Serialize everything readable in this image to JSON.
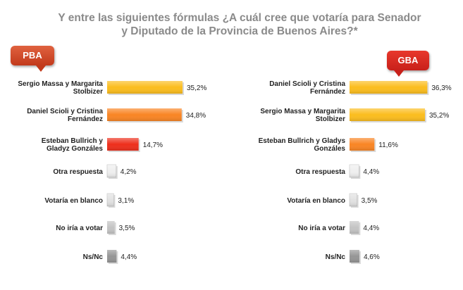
{
  "title_line1": "Y entre las siguientes fórmulas ¿A cuál cree que votaría para Senador",
  "title_line2": "y Diputado de la Provincia de Buenos Aires?*",
  "chart_data": [
    {
      "type": "bar",
      "title": "PBA",
      "categories": [
        [
          "Sergio Massa y Margarita",
          "Stolbizer"
        ],
        [
          "Daniel Scioli y Cristina",
          "Fernández"
        ],
        [
          "Esteban Bullrich y",
          "Gladyz Gonzáles"
        ],
        [
          "Otra respuesta"
        ],
        [
          "Votaría en blanco"
        ],
        [
          "No iría a votar"
        ],
        [
          "Ns/Nc"
        ]
      ],
      "values": [
        35.2,
        34.8,
        14.7,
        4.2,
        3.1,
        3.5,
        4.4
      ],
      "value_labels": [
        "35,2%",
        "34,8%",
        "14,7%",
        "4,2%",
        "3,1%",
        "3,5%",
        "4,4%"
      ],
      "colors": [
        "#fbbd1e",
        "#f98524",
        "#ee2f1c",
        "#efefef",
        "#e2e2e2",
        "#c4c4c4",
        "#969696"
      ]
    },
    {
      "type": "bar",
      "title": "GBA",
      "categories": [
        [
          "Daniel Scioli y Cristina",
          "Fernández"
        ],
        [
          "Sergio Massa y Margarita",
          "Stolbizer"
        ],
        [
          "Esteban Bullrich y Gladys",
          "Gonzáles"
        ],
        [
          "Otra respuesta"
        ],
        [
          "Votaría en blanco"
        ],
        [
          "No iría a votar"
        ],
        [
          "Ns/Nc"
        ]
      ],
      "values": [
        36.3,
        35.2,
        11.6,
        4.4,
        3.5,
        4.4,
        4.6
      ],
      "value_labels": [
        "36,3%",
        "35,2%",
        "11,6%",
        "4,4%",
        "3,5%",
        "4,4%",
        "4,6%"
      ],
      "colors": [
        "#fbbd1e",
        "#fbbd1e",
        "#f98524",
        "#efefef",
        "#e2e2e2",
        "#c4c4c4",
        "#969696"
      ]
    }
  ]
}
